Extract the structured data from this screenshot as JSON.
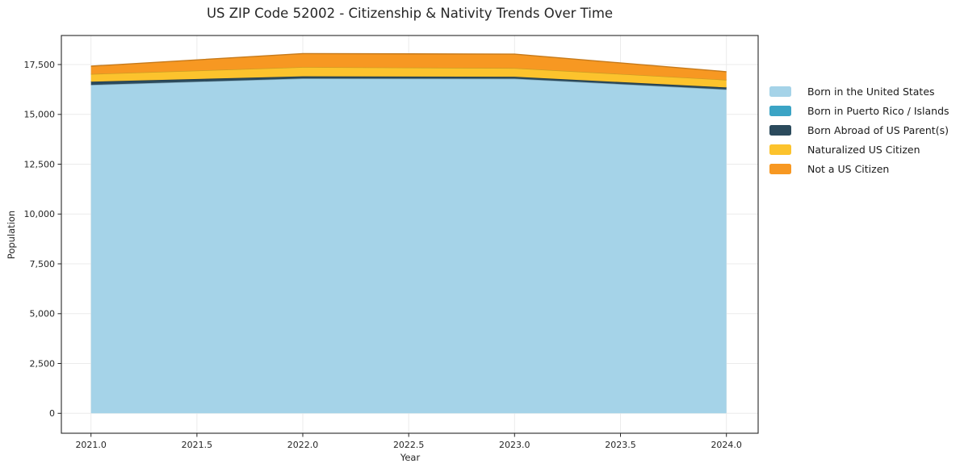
{
  "chart_data": {
    "type": "area",
    "stacked": true,
    "title": "US ZIP Code 52002 - Citizenship & Nativity Trends Over Time",
    "xlabel": "Year",
    "ylabel": "Population",
    "x": [
      2021,
      2022,
      2023,
      2024
    ],
    "series": [
      {
        "name": "Born in the United States",
        "color": "#A5D3E8",
        "values": [
          16480,
          16800,
          16790,
          16250
        ]
      },
      {
        "name": "Born in Puerto Rico / Islands",
        "color": "#3BA4C5",
        "values": [
          0,
          0,
          0,
          0
        ]
      },
      {
        "name": "Born Abroad of US Parent(s)",
        "color": "#2B4A5C",
        "values": [
          160,
          110,
          100,
          100
        ]
      },
      {
        "name": "Naturalized US Citizen",
        "color": "#FCC32D",
        "values": [
          380,
          460,
          430,
          380
        ]
      },
      {
        "name": "Not a US Citizen",
        "color": "#F79822",
        "values": [
          400,
          680,
          700,
          410
        ]
      }
    ],
    "totals": [
      17420,
      18050,
      18020,
      17140
    ],
    "xticks": {
      "values": [
        2021.0,
        2021.5,
        2022.0,
        2022.5,
        2023.0,
        2023.5,
        2024.0
      ],
      "labels": [
        "2021.0",
        "2021.5",
        "2022.0",
        "2022.5",
        "2023.0",
        "2023.5",
        "2024.0"
      ]
    },
    "yticks": {
      "values": [
        0,
        2500,
        5000,
        7500,
        10000,
        12500,
        15000,
        17500
      ],
      "labels": [
        "0",
        "2,500",
        "5,000",
        "7,500",
        "10,000",
        "12,500",
        "15,000",
        "17,500"
      ]
    },
    "xlim": [
      2020.86,
      2024.15
    ],
    "ylim": [
      -1000,
      18957
    ],
    "grid": true,
    "grid_color": "#ebebeb",
    "axis_color": "#262626",
    "legend_position": "right-outside"
  }
}
